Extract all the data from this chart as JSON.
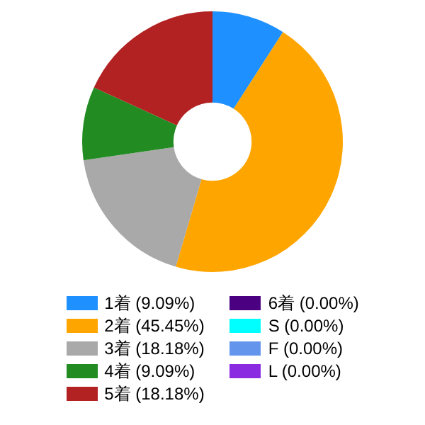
{
  "chart_data": {
    "type": "donut",
    "categories": [
      "1着 (9.09%)",
      "2着 (45.45%)",
      "3着 (18.18%)",
      "4着 (9.09%)",
      "5着 (18.18%)",
      "6着 (0.00%)",
      "S (0.00%)",
      "F (0.00%)",
      "L (0.00%)"
    ],
    "values": [
      9.09,
      45.45,
      18.18,
      9.09,
      18.18,
      0,
      0,
      0,
      0
    ],
    "colors": [
      "#1e90ff",
      "#ffa500",
      "#a9a9a9",
      "#228b22",
      "#b22222",
      "#4b0082",
      "#00ffff",
      "#6495ed",
      "#8a2be2"
    ],
    "legend": "bottom"
  }
}
